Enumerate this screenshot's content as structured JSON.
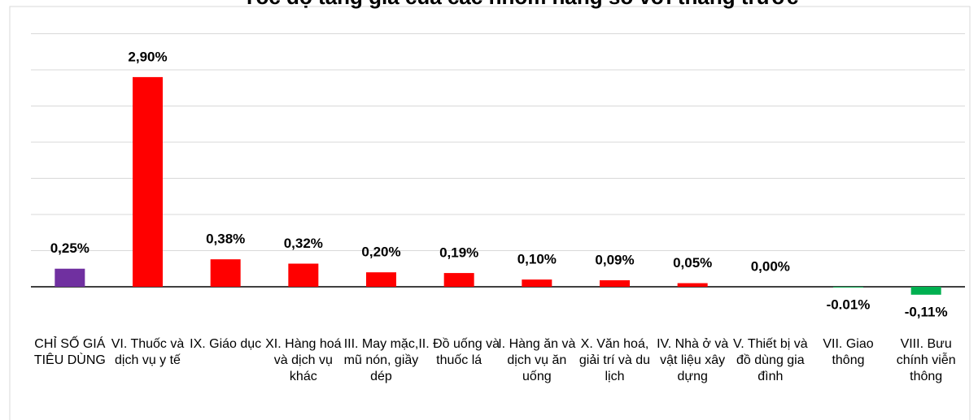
{
  "chart_data": {
    "type": "bar",
    "title": "Tốc độ tăng giá của các nhóm hàng so với tháng trước",
    "categories": [
      "CHỈ SỐ GIÁ TIÊU DÙNG",
      "VI. Thuốc và dịch vụ y tế",
      "IX. Giáo dục",
      "XI. Hàng hoá và dịch vụ khác",
      "III. May mặc, mũ nón, giầy dép",
      "II. Đồ uống và thuốc lá",
      "I. Hàng ăn và dịch vụ ăn uống",
      "X. Văn hoá, giải trí và du lịch",
      "IV. Nhà ở và vật liệu xây dựng",
      "V. Thiết bị và đồ dùng gia đình",
      "VII. Giao thông",
      "VIII. Bưu chính viễn thông"
    ],
    "values": [
      0.25,
      2.9,
      0.38,
      0.32,
      0.2,
      0.19,
      0.1,
      0.09,
      0.05,
      0.0,
      -0.01,
      -0.11
    ],
    "value_labels": [
      "0,25%",
      "2,90%",
      "0,38%",
      "0,32%",
      "0,20%",
      "0,19%",
      "0,10%",
      "0,09%",
      "0,05%",
      "0,00%",
      "-0.01%",
      "-0,11%"
    ],
    "colors": [
      "#7030a0",
      "#ff0000",
      "#ff0000",
      "#ff0000",
      "#ff0000",
      "#ff0000",
      "#ff0000",
      "#ff0000",
      "#ff0000",
      "#ff0000",
      "#00b050",
      "#00b050"
    ],
    "ylim": [
      -0.5,
      3.5
    ],
    "yticks": [
      0,
      0.5,
      1,
      1.5,
      2,
      2.5,
      3,
      3.5
    ],
    "grid": true
  }
}
